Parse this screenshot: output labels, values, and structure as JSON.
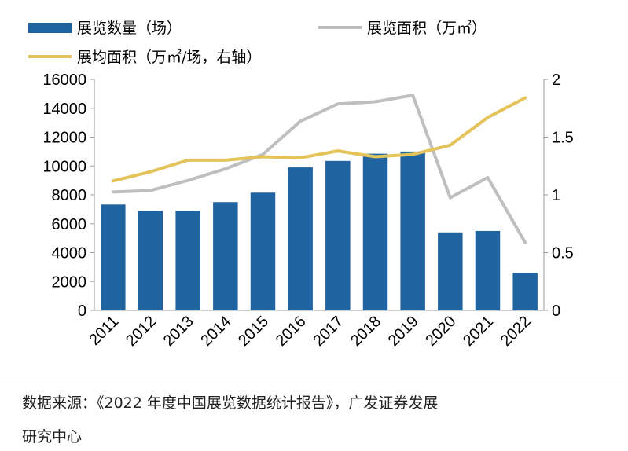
{
  "chart_data": {
    "type": "bar+line",
    "categories": [
      "2011",
      "2012",
      "2013",
      "2014",
      "2015",
      "2016",
      "2017",
      "2018",
      "2019",
      "2020",
      "2021",
      "2022"
    ],
    "series": [
      {
        "name": "展览数量（场）",
        "type": "bar",
        "axis": "left",
        "color": "#1f64a1",
        "values": [
          7330,
          6900,
          6900,
          7500,
          8150,
          9900,
          10350,
          10850,
          11000,
          5400,
          5500,
          2600
        ]
      },
      {
        "name": "展览面积（万㎡）",
        "type": "line",
        "axis": "left",
        "color": "#bfbfbf",
        "values": [
          8200,
          8300,
          9000,
          9800,
          10800,
          13100,
          14300,
          14450,
          14900,
          7800,
          9200,
          4700
        ]
      },
      {
        "name": "展均面积（万㎡/场，右轴）",
        "type": "line",
        "axis": "right",
        "color": "#e3c35a",
        "values": [
          1.12,
          1.2,
          1.3,
          1.3,
          1.33,
          1.32,
          1.38,
          1.33,
          1.35,
          1.43,
          1.67,
          1.84
        ]
      }
    ],
    "left_axis": {
      "ylim": [
        0,
        16000
      ],
      "ticks": [
        "0",
        "2000",
        "4000",
        "6000",
        "8000",
        "10000",
        "12000",
        "14000",
        "16000"
      ]
    },
    "right_axis": {
      "ylim": [
        0,
        2
      ],
      "ticks": [
        "0",
        "0.5",
        "1",
        "1.5",
        "2"
      ]
    },
    "legend_placement": "top"
  },
  "source_line1": "数据来源：《2022 年度中国展览数据统计报告》，广发证券发展",
  "source_line2": "研究中心"
}
